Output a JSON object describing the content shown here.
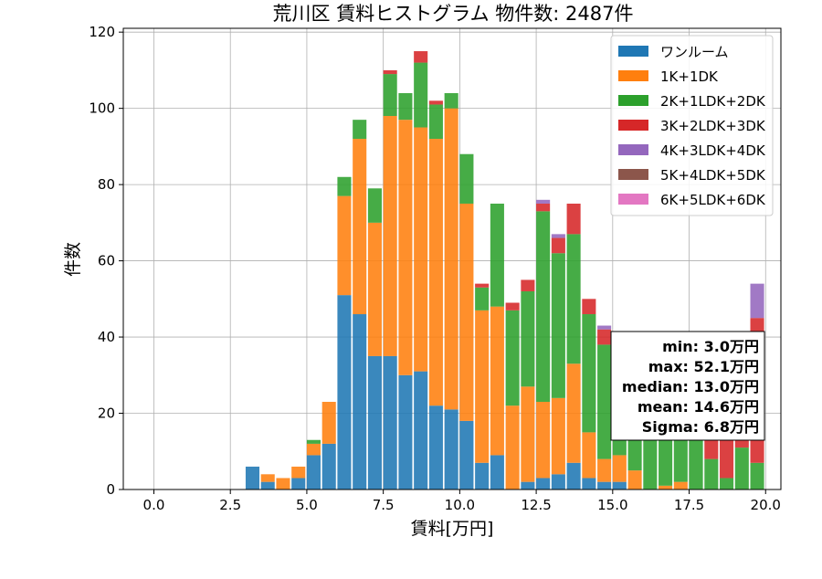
{
  "chart_data": {
    "type": "bar",
    "stacked": true,
    "title": "荒川区 賃料ヒストグラム  物件数: 2487件",
    "xlabel": "賃料[万円]",
    "ylabel": "件数",
    "xlim": [
      -1.0,
      20.5
    ],
    "ylim": [
      0,
      121
    ],
    "xticks": [
      0.0,
      2.5,
      5.0,
      7.5,
      10.0,
      12.5,
      15.0,
      17.5,
      20.0
    ],
    "xtick_labels": [
      "0.0",
      "2.5",
      "5.0",
      "7.5",
      "10.0",
      "12.5",
      "15.0",
      "17.5",
      "20.0"
    ],
    "yticks": [
      0,
      20,
      40,
      60,
      80,
      100,
      120
    ],
    "ytick_labels": [
      "0",
      "20",
      "40",
      "60",
      "80",
      "100",
      "120"
    ],
    "grid": true,
    "legend_position": "top-right",
    "bin_width": 0.5,
    "bins": [
      3.0,
      3.5,
      4.0,
      4.5,
      5.0,
      5.5,
      6.0,
      6.5,
      7.0,
      7.5,
      8.0,
      8.5,
      9.0,
      9.5,
      10.0,
      10.5,
      11.0,
      11.5,
      12.0,
      12.5,
      13.0,
      13.5,
      14.0,
      14.5,
      15.0,
      15.5,
      16.0,
      16.5,
      17.0,
      17.5,
      18.0,
      18.5,
      19.0,
      19.5
    ],
    "series": [
      {
        "name": "ワンルーム",
        "color": "#1f77b4",
        "values": [
          6,
          2,
          0,
          3,
          9,
          12,
          51,
          46,
          35,
          35,
          30,
          31,
          22,
          21,
          18,
          7,
          9,
          0,
          2,
          3,
          4,
          7,
          3,
          2,
          2,
          0,
          0,
          0,
          0,
          0,
          0,
          0,
          0,
          0
        ]
      },
      {
        "name": "1K+1DK",
        "color": "#ff7f0e",
        "values": [
          0,
          2,
          3,
          3,
          3,
          11,
          26,
          46,
          35,
          63,
          67,
          64,
          70,
          79,
          57,
          40,
          39,
          22,
          25,
          20,
          20,
          26,
          12,
          6,
          7,
          5,
          0,
          1,
          2,
          0,
          0,
          0,
          0,
          0
        ]
      },
      {
        "name": "2K+1LDK+2DK",
        "color": "#2ca02c",
        "values": [
          0,
          0,
          0,
          0,
          1,
          0,
          5,
          5,
          9,
          11,
          7,
          17,
          9,
          4,
          13,
          6,
          27,
          25,
          25,
          50,
          38,
          34,
          31,
          30,
          28,
          18,
          20,
          24,
          19,
          30,
          8,
          3,
          11,
          7
        ]
      },
      {
        "name": "3K+2LDK+3DK",
        "color": "#d62728",
        "values": [
          0,
          0,
          0,
          0,
          0,
          0,
          0,
          0,
          0,
          1,
          0,
          3,
          1,
          0,
          0,
          1,
          0,
          2,
          3,
          2,
          4,
          8,
          4,
          4,
          1,
          2,
          3,
          2,
          3,
          1,
          6,
          10,
          6,
          38
        ]
      },
      {
        "name": "4K+3LDK+4DK",
        "color": "#9467bd",
        "values": [
          0,
          0,
          0,
          0,
          0,
          0,
          0,
          0,
          0,
          0,
          0,
          0,
          0,
          0,
          0,
          0,
          0,
          0,
          0,
          1,
          1,
          0,
          0,
          1,
          1,
          0,
          0,
          0,
          0,
          0,
          0,
          0,
          0,
          9
        ]
      },
      {
        "name": "5K+4LDK+5DK",
        "color": "#8c564b",
        "values": [
          0,
          0,
          0,
          0,
          0,
          0,
          0,
          0,
          0,
          0,
          0,
          0,
          0,
          0,
          0,
          0,
          0,
          0,
          0,
          0,
          0,
          0,
          0,
          0,
          0,
          0,
          0,
          0,
          0,
          0,
          0,
          0,
          0,
          0
        ]
      },
      {
        "name": "6K+5LDK+6DK",
        "color": "#e377c2",
        "values": [
          0,
          0,
          0,
          0,
          0,
          0,
          0,
          0,
          0,
          0,
          0,
          0,
          0,
          0,
          0,
          0,
          0,
          0,
          0,
          0,
          0,
          0,
          0,
          0,
          0,
          0,
          0,
          0,
          0,
          0,
          0,
          0,
          0,
          0
        ]
      }
    ],
    "stats_box": {
      "lines": [
        "min: 3.0万円",
        "max: 52.1万円",
        "median: 13.0万円",
        "mean: 14.6万円",
        "Sigma: 6.8万円"
      ]
    }
  }
}
